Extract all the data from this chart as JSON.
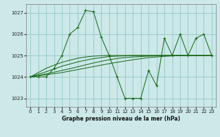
{
  "background_color": "#cce8e8",
  "grid_color": "#99cccc",
  "line_color": "#1a6b1a",
  "xlabel": "Graphe pression niveau de la mer (hPa)",
  "ylim": [
    1022.6,
    1027.4
  ],
  "xlim": [
    -0.5,
    23.5
  ],
  "yticks": [
    1023,
    1024,
    1025,
    1026,
    1027
  ],
  "xticks": [
    0,
    1,
    2,
    3,
    4,
    5,
    6,
    7,
    8,
    9,
    10,
    11,
    12,
    13,
    14,
    15,
    16,
    17,
    18,
    19,
    20,
    21,
    22,
    23
  ],
  "main_series": [
    1024.0,
    1024.0,
    1024.0,
    1024.4,
    1025.0,
    1026.0,
    1026.3,
    1027.1,
    1027.05,
    1025.85,
    1025.0,
    1024.0,
    1023.0,
    1023.0,
    1023.0,
    1024.3,
    1023.6,
    1025.8,
    1025.0,
    1026.0,
    1025.0,
    1025.8,
    1026.0,
    1025.0
  ],
  "trend_lines": [
    [
      1024.0,
      1024.05,
      1024.1,
      1024.15,
      1024.2,
      1024.27,
      1024.34,
      1024.41,
      1024.48,
      1024.55,
      1024.62,
      1024.68,
      1024.74,
      1024.8,
      1024.85,
      1024.9,
      1024.93,
      1024.96,
      1024.98,
      1025.0,
      1025.0,
      1025.0,
      1025.0,
      1025.0
    ],
    [
      1024.0,
      1024.07,
      1024.14,
      1024.22,
      1024.3,
      1024.38,
      1024.47,
      1024.56,
      1024.65,
      1024.73,
      1024.8,
      1024.86,
      1024.9,
      1024.93,
      1024.95,
      1024.97,
      1024.98,
      1025.0,
      1025.0,
      1025.0,
      1025.0,
      1025.0,
      1025.0,
      1025.0
    ],
    [
      1024.0,
      1024.12,
      1024.24,
      1024.37,
      1024.5,
      1024.6,
      1024.7,
      1024.78,
      1024.85,
      1024.9,
      1024.95,
      1024.97,
      1024.98,
      1025.0,
      1025.0,
      1025.0,
      1025.0,
      1025.0,
      1025.0,
      1025.0,
      1025.0,
      1025.0,
      1025.0,
      1025.0
    ],
    [
      1024.0,
      1024.2,
      1024.4,
      1024.55,
      1024.68,
      1024.78,
      1024.87,
      1024.93,
      1024.97,
      1024.99,
      1025.0,
      1025.0,
      1025.0,
      1025.0,
      1025.0,
      1025.0,
      1025.0,
      1025.0,
      1025.0,
      1025.0,
      1025.0,
      1025.0,
      1025.0,
      1025.0
    ]
  ]
}
